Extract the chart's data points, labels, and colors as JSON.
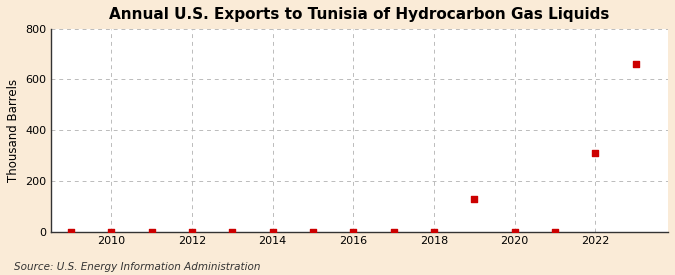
{
  "title": "Annual U.S. Exports to Tunisia of Hydrocarbon Gas Liquids",
  "ylabel": "Thousand Barrels",
  "source": "Source: U.S. Energy Information Administration",
  "background_color": "#faebd7",
  "plot_background_color": "#ffffff",
  "years": [
    2009,
    2010,
    2011,
    2012,
    2013,
    2014,
    2015,
    2016,
    2017,
    2018,
    2019,
    2020,
    2021,
    2022,
    2023
  ],
  "values": [
    0,
    0,
    0,
    0,
    0,
    0,
    0,
    0,
    0,
    0,
    130,
    0,
    0,
    310,
    660
  ],
  "marker_color": "#cc0000",
  "marker_size": 4,
  "grid_color": "#bbbbbb",
  "ylim": [
    0,
    800
  ],
  "yticks": [
    0,
    200,
    400,
    600,
    800
  ],
  "xlim": [
    2008.5,
    2023.8
  ],
  "xticks": [
    2010,
    2012,
    2014,
    2016,
    2018,
    2020,
    2022
  ],
  "title_fontsize": 11,
  "axis_label_fontsize": 8.5,
  "tick_fontsize": 8,
  "source_fontsize": 7.5
}
